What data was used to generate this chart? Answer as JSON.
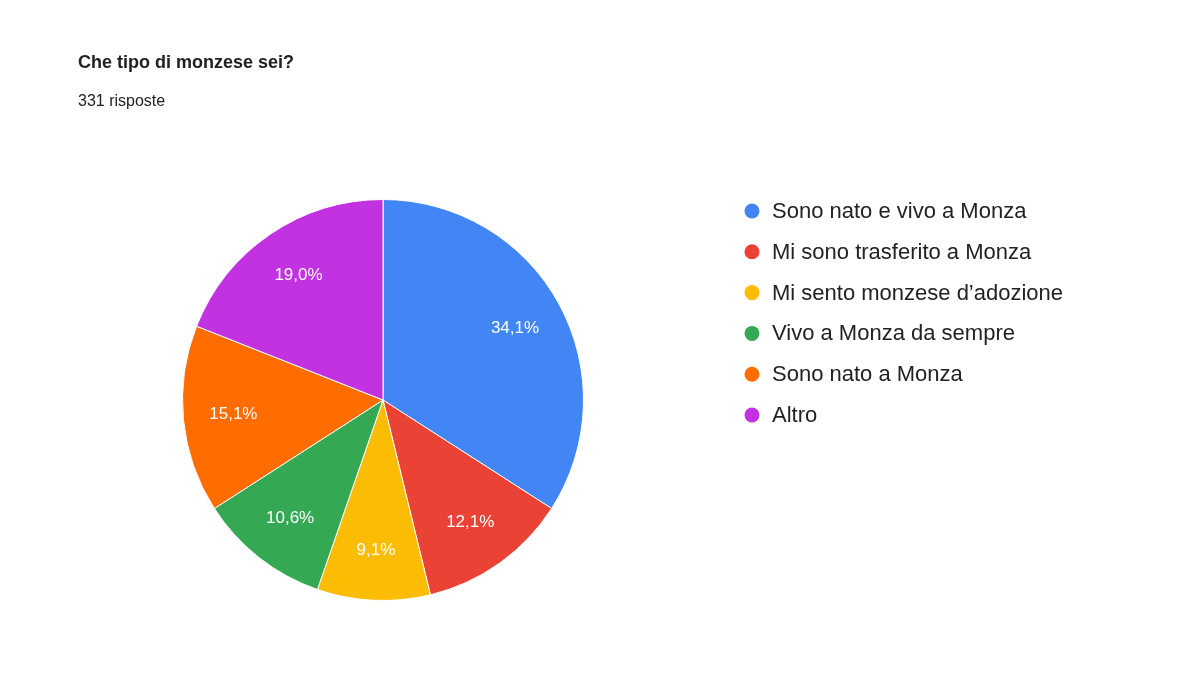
{
  "chart_data": {
    "type": "pie",
    "title": "Che tipo di monzese sei?",
    "subtitle": "331 risposte",
    "categories": [
      "Sono nato e vivo a Monza",
      "Mi sono trasferito a Monza",
      "Mi sento monzese d’adozione",
      "Vivo a Monza da sempre",
      "Sono nato a Monza",
      "Altro"
    ],
    "values": [
      34.1,
      12.1,
      9.1,
      10.6,
      15.1,
      19.0
    ],
    "colors": [
      "#4285f4",
      "#ea4335",
      "#fbbc04",
      "#34a853",
      "#ff6d01",
      "#c232e0"
    ],
    "value_labels": [
      "34,1%",
      "12,1%",
      "9,1%",
      "10,6%",
      "15,1%",
      "19,0%"
    ],
    "legend": "right"
  }
}
